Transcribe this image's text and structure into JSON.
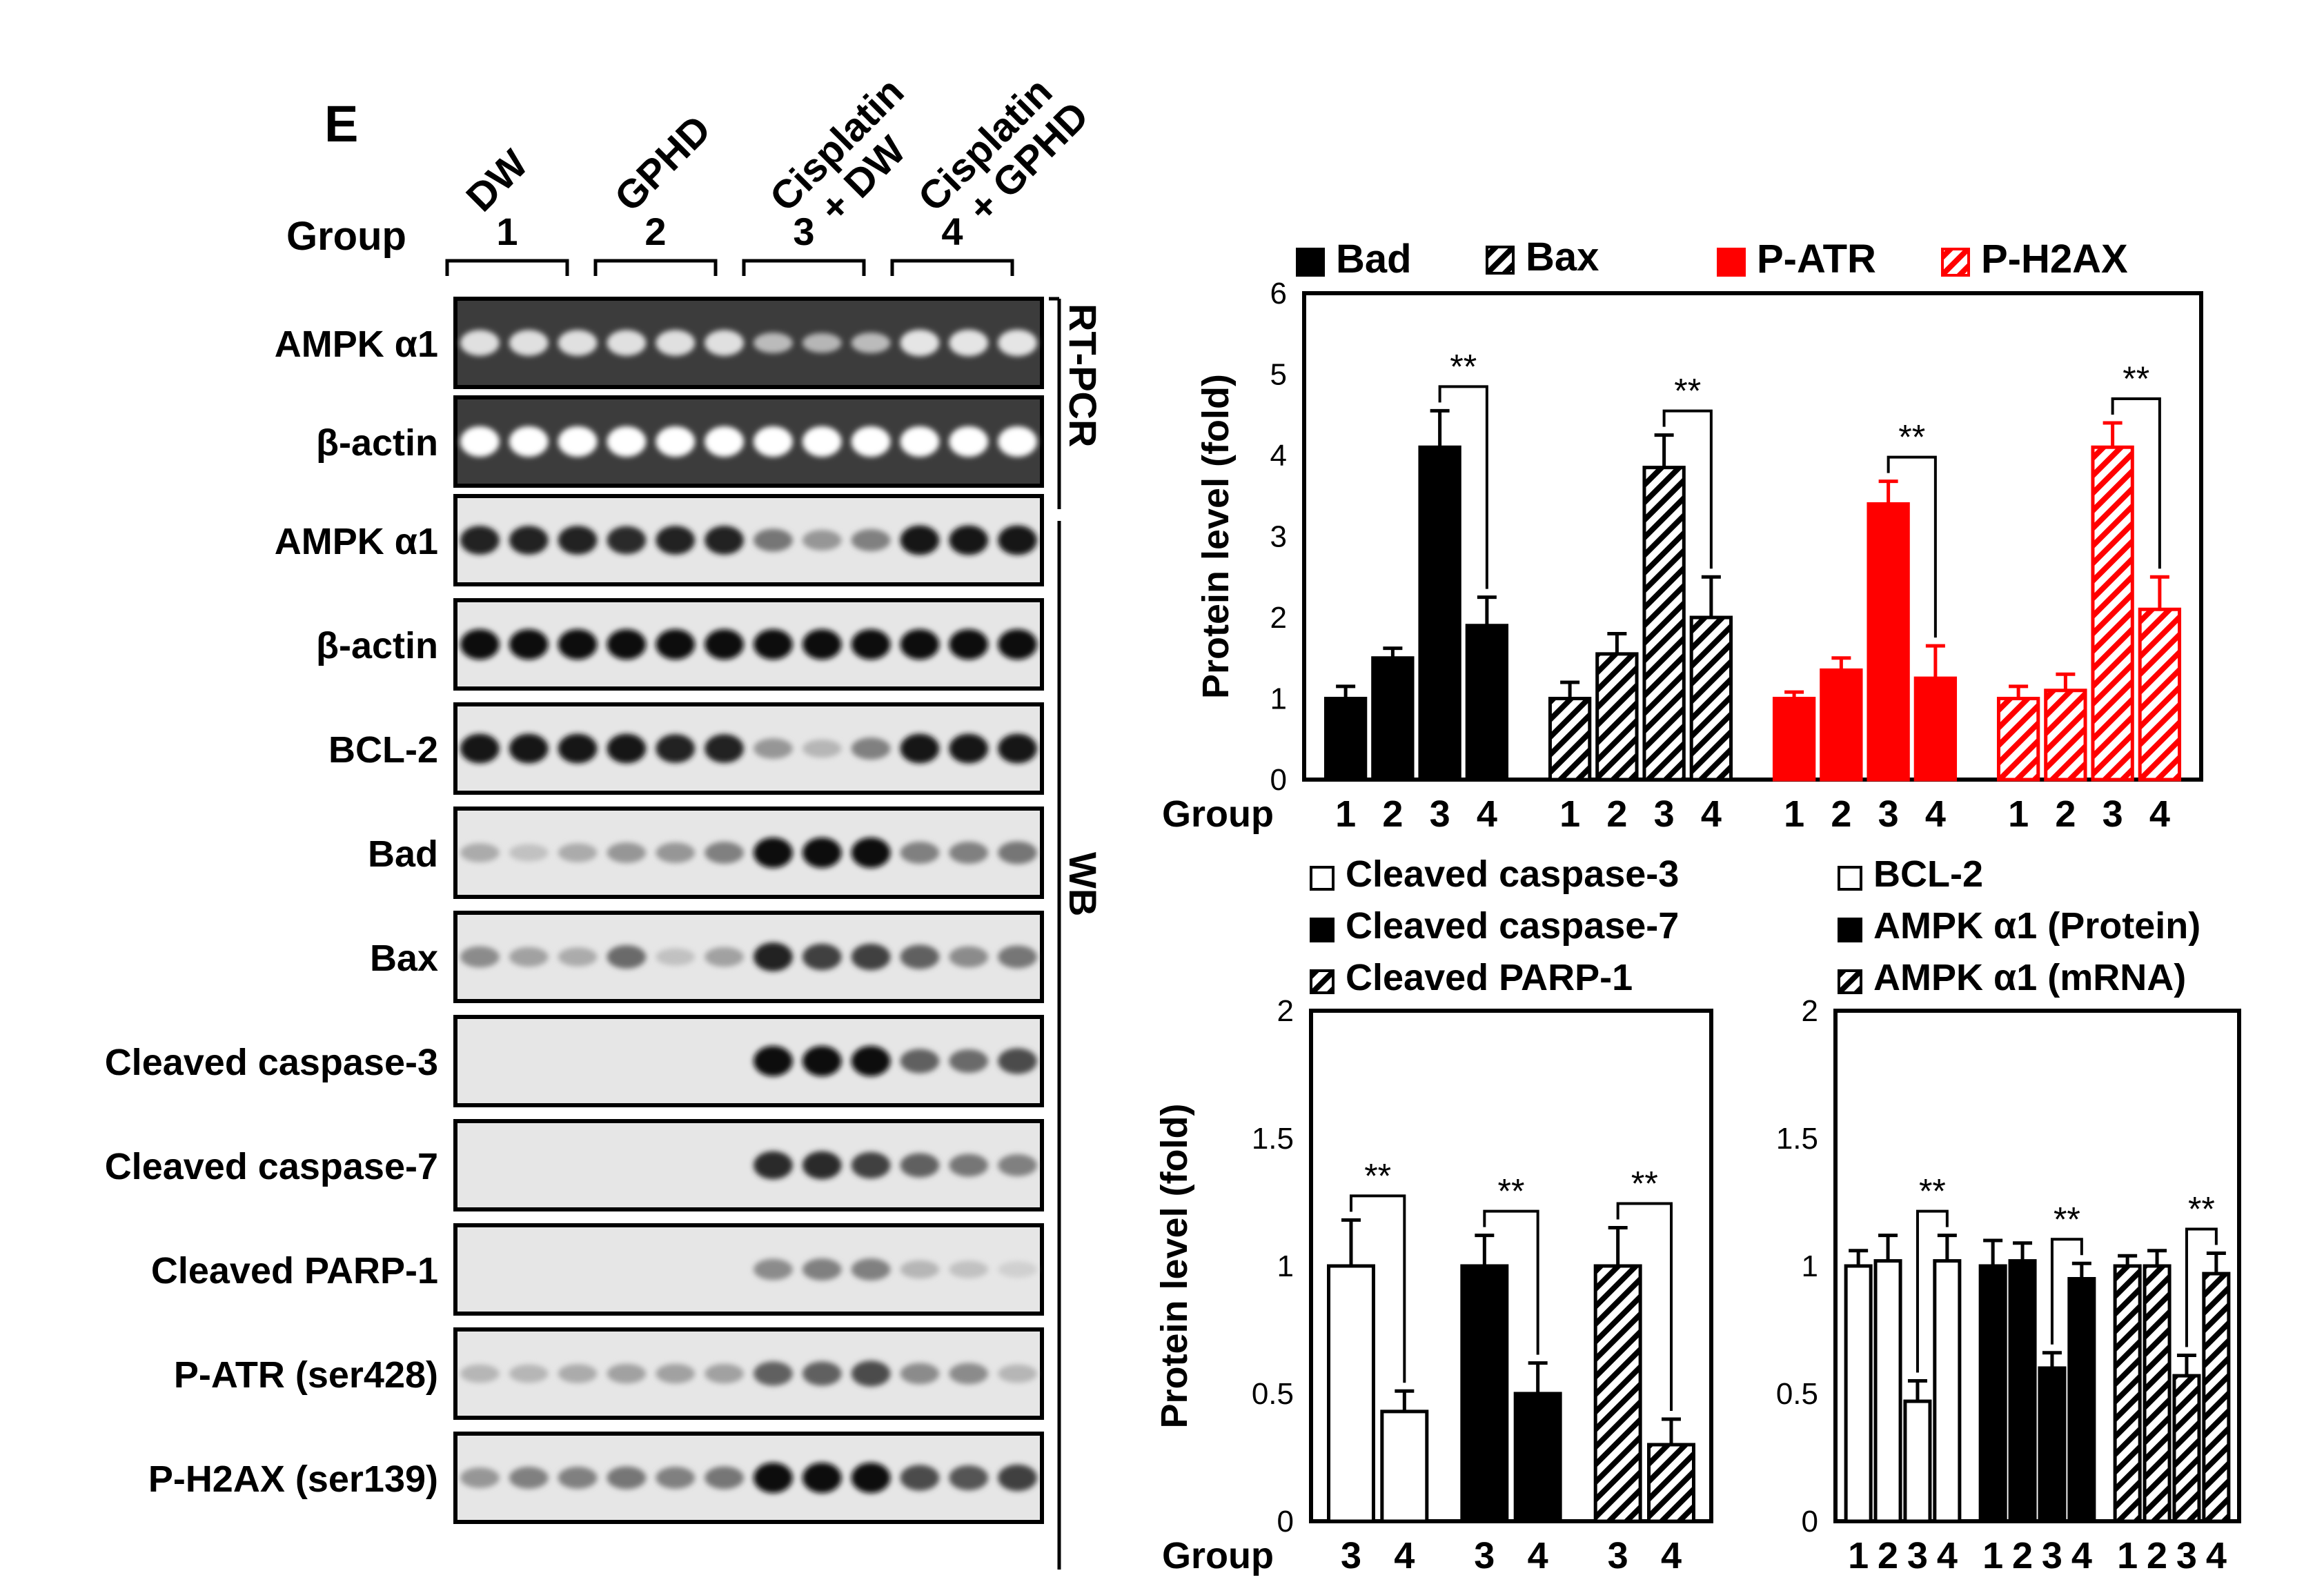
{
  "panel_label": "E",
  "group_label": "Group",
  "treatments": [
    "DW",
    "GPHD",
    "Cisplatin\n+ DW",
    "Cisplatin\n+ GPHD"
  ],
  "group_numbers": [
    "1",
    "2",
    "3",
    "4"
  ],
  "methods": {
    "rtpcr": "RT-PCR",
    "wb": "WB"
  },
  "blots": [
    {
      "label": "AMPK α1",
      "type": "gel",
      "intensity": [
        0.7,
        0.7,
        0.7,
        0.7,
        0.7,
        0.7,
        0.35,
        0.3,
        0.35,
        0.75,
        0.75,
        0.75
      ]
    },
    {
      "label": "β-actin",
      "type": "gel",
      "intensity": [
        1,
        1,
        1,
        1,
        1,
        1,
        1,
        1,
        1,
        1,
        1,
        1
      ]
    },
    {
      "label": "AMPK α1",
      "type": "wb",
      "intensity": [
        0.9,
        0.9,
        0.9,
        0.85,
        0.9,
        0.9,
        0.5,
        0.35,
        0.45,
        0.95,
        0.95,
        0.95
      ]
    },
    {
      "label": "β-actin",
      "type": "wb",
      "intensity": [
        1,
        1,
        1,
        1,
        1,
        1,
        1,
        1,
        1,
        1,
        1,
        1
      ]
    },
    {
      "label": "BCL-2",
      "type": "wb",
      "intensity": [
        0.95,
        0.95,
        0.95,
        0.95,
        0.9,
        0.9,
        0.35,
        0.2,
        0.45,
        0.95,
        0.95,
        0.95
      ]
    },
    {
      "label": "Bad",
      "type": "wb",
      "intensity": [
        0.25,
        0.15,
        0.25,
        0.35,
        0.35,
        0.45,
        1,
        1,
        1,
        0.45,
        0.45,
        0.5
      ]
    },
    {
      "label": "Bax",
      "type": "wb",
      "intensity": [
        0.4,
        0.3,
        0.25,
        0.55,
        0.15,
        0.3,
        0.9,
        0.75,
        0.75,
        0.6,
        0.4,
        0.5
      ]
    },
    {
      "label": "Cleaved caspase-3",
      "type": "wb",
      "intensity": [
        0,
        0,
        0,
        0,
        0,
        0,
        1,
        1,
        1,
        0.6,
        0.55,
        0.7
      ]
    },
    {
      "label": "Cleaved caspase-7",
      "type": "wb",
      "intensity": [
        0,
        0,
        0,
        0,
        0,
        0,
        0.85,
        0.85,
        0.75,
        0.6,
        0.5,
        0.45
      ]
    },
    {
      "label": "Cleaved PARP-1",
      "type": "wb",
      "intensity": [
        0,
        0,
        0,
        0,
        0,
        0,
        0.4,
        0.45,
        0.45,
        0.2,
        0.15,
        0.08
      ]
    },
    {
      "label": "P-ATR  (ser428)",
      "type": "wb",
      "intensity": [
        0.2,
        0.2,
        0.25,
        0.3,
        0.3,
        0.3,
        0.6,
        0.6,
        0.7,
        0.4,
        0.4,
        0.2
      ]
    },
    {
      "label": "P-H2AX  (ser139)",
      "type": "wb",
      "intensity": [
        0.35,
        0.45,
        0.45,
        0.5,
        0.45,
        0.5,
        1,
        1,
        1,
        0.7,
        0.65,
        0.75
      ]
    }
  ],
  "chart_data": [
    {
      "type": "bar",
      "title": "",
      "ylabel": "Protein level (fold)",
      "xlabel": "Group",
      "ylim": [
        0,
        6
      ],
      "yticks": [
        "0",
        "1",
        "2",
        "3",
        "4",
        "5",
        "6"
      ],
      "categories": [
        "1",
        "2",
        "3",
        "4"
      ],
      "series": [
        {
          "name": "Bad",
          "color": "#000000",
          "pattern": "solid",
          "values": [
            1.0,
            1.5,
            4.1,
            1.9
          ],
          "errors": [
            0.15,
            0.12,
            0.45,
            0.35
          ]
        },
        {
          "name": "Bax",
          "color": "#000000",
          "pattern": "hatch",
          "values": [
            1.0,
            1.55,
            3.85,
            2.0
          ],
          "errors": [
            0.2,
            0.25,
            0.4,
            0.5
          ]
        },
        {
          "name": "P-ATR",
          "color": "#ff0000",
          "pattern": "solid",
          "values": [
            1.0,
            1.35,
            3.4,
            1.25
          ],
          "errors": [
            0.08,
            0.15,
            0.28,
            0.4
          ]
        },
        {
          "name": "P-H2AX",
          "color": "#ff0000",
          "pattern": "hatch",
          "values": [
            1.0,
            1.1,
            4.1,
            2.1
          ],
          "errors": [
            0.15,
            0.2,
            0.3,
            0.4
          ]
        }
      ],
      "significance": [
        "**",
        "**",
        "**",
        "**"
      ]
    },
    {
      "type": "bar",
      "ylabel": "Protein level (fold)",
      "xlabel": "Group",
      "ylim": [
        0,
        2
      ],
      "yticks": [
        "0",
        "0.5",
        "1",
        "1.5",
        "2"
      ],
      "categories": [
        "3",
        "4"
      ],
      "series": [
        {
          "name": "Cleaved caspase-3",
          "color": "#000000",
          "pattern": "open",
          "values": [
            1.0,
            0.43
          ],
          "errors": [
            0.18,
            0.08
          ]
        },
        {
          "name": "Cleaved caspase-7",
          "color": "#000000",
          "pattern": "solid",
          "values": [
            1.0,
            0.5
          ],
          "errors": [
            0.12,
            0.12
          ]
        },
        {
          "name": "Cleaved PARP-1",
          "color": "#000000",
          "pattern": "hatch",
          "values": [
            1.0,
            0.3
          ],
          "errors": [
            0.15,
            0.1
          ]
        }
      ],
      "significance": [
        "**",
        "**",
        "**"
      ]
    },
    {
      "type": "bar",
      "ylim": [
        0,
        2
      ],
      "yticks": [
        "0",
        "0.5",
        "1",
        "1.5",
        "2"
      ],
      "categories": [
        "1",
        "2",
        "3",
        "4"
      ],
      "series": [
        {
          "name": "BCL-2",
          "color": "#000000",
          "pattern": "open",
          "values": [
            1.0,
            1.02,
            0.47,
            1.02
          ],
          "errors": [
            0.06,
            0.1,
            0.08,
            0.1
          ]
        },
        {
          "name": "AMPK α1 (Protein)",
          "color": "#000000",
          "pattern": "solid",
          "values": [
            1.0,
            1.02,
            0.6,
            0.95
          ],
          "errors": [
            0.1,
            0.07,
            0.06,
            0.06
          ]
        },
        {
          "name": "AMPK α1 (mRNA)",
          "color": "#000000",
          "pattern": "hatch",
          "values": [
            1.0,
            1.0,
            0.57,
            0.97
          ],
          "errors": [
            0.04,
            0.06,
            0.08,
            0.08
          ]
        }
      ],
      "significance": [
        "**",
        "**",
        "**"
      ]
    }
  ]
}
